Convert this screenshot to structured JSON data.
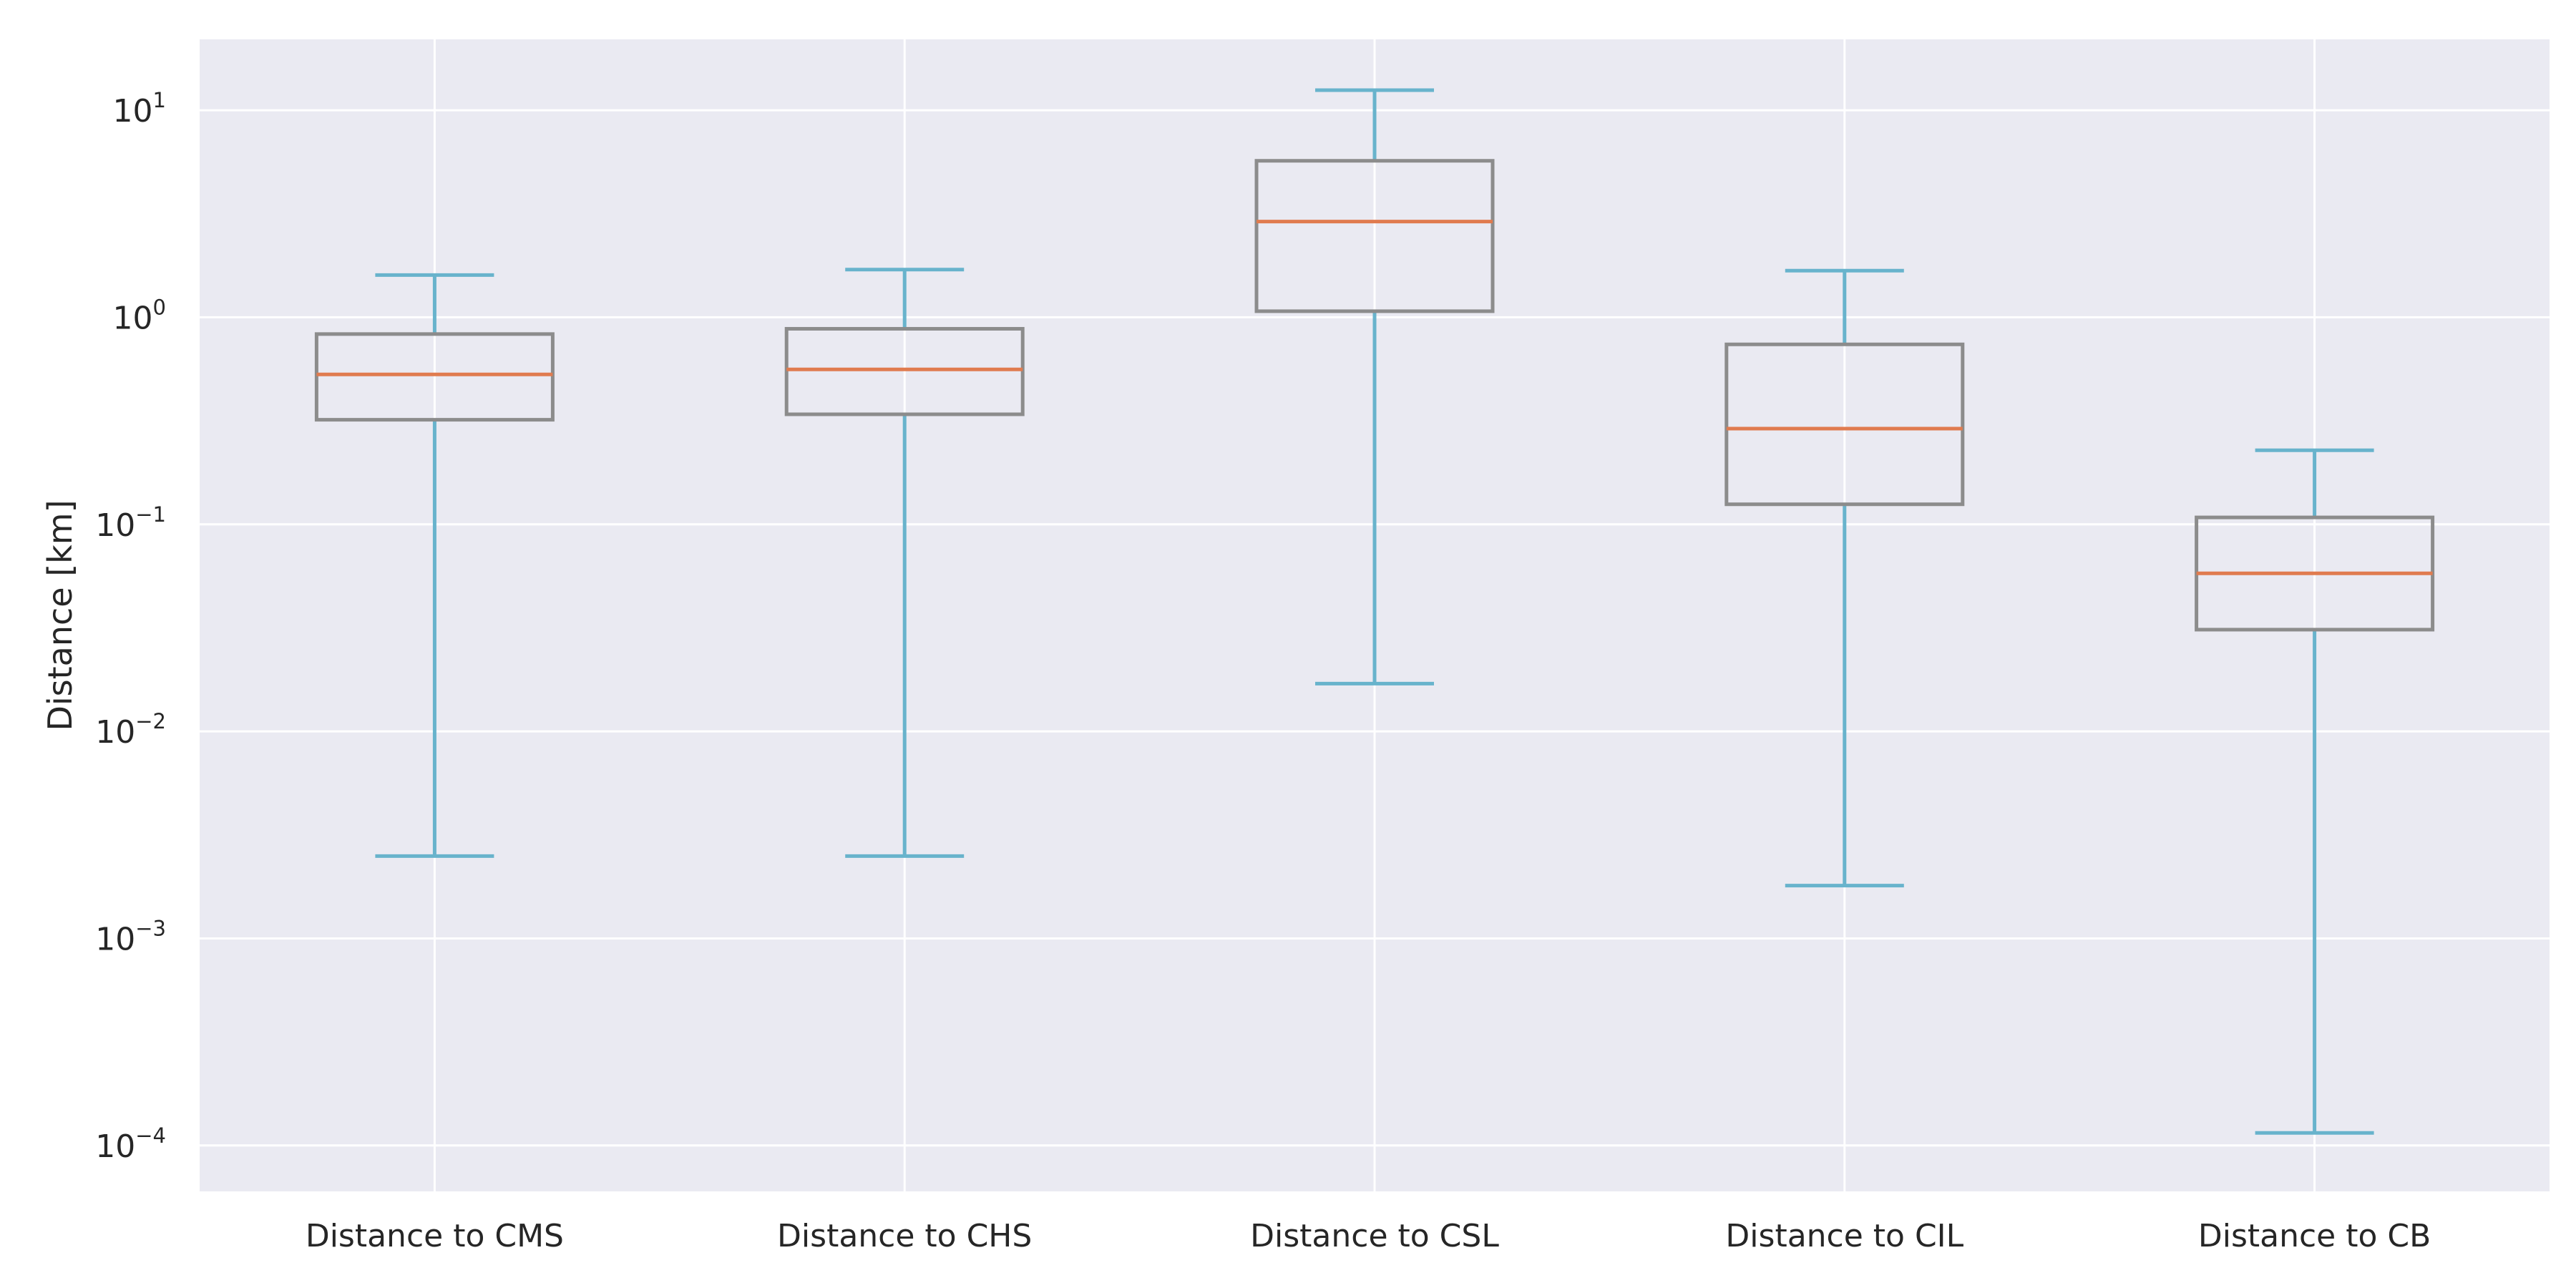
{
  "chart_data": {
    "type": "box",
    "title": "",
    "xlabel": "",
    "ylabel": "Distance [km]",
    "yscale": "log",
    "ylim": [
      6e-05,
      22
    ],
    "grid": true,
    "legend": "none",
    "categories": [
      "Distance to CMS",
      "Distance to CHS",
      "Distance to CSL",
      "Distance to CIL",
      "Distance to CB"
    ],
    "yticks": [
      {
        "value": 0.0001,
        "base": "10",
        "exp": "−4"
      },
      {
        "value": 0.001,
        "base": "10",
        "exp": "−3"
      },
      {
        "value": 0.01,
        "base": "10",
        "exp": "−2"
      },
      {
        "value": 0.1,
        "base": "10",
        "exp": "−1"
      },
      {
        "value": 1,
        "base": "10",
        "exp": "0"
      },
      {
        "value": 10,
        "base": "10",
        "exp": "1"
      }
    ],
    "boxes": [
      {
        "label": "Distance to CMS",
        "whisker_low": 0.0025,
        "q1": 0.32,
        "median": 0.53,
        "q3": 0.83,
        "whisker_high": 1.6
      },
      {
        "label": "Distance to CHS",
        "whisker_low": 0.0025,
        "q1": 0.34,
        "median": 0.56,
        "q3": 0.88,
        "whisker_high": 1.7
      },
      {
        "label": "Distance to CSL",
        "whisker_low": 0.017,
        "q1": 1.07,
        "median": 2.9,
        "q3": 5.7,
        "whisker_high": 12.5
      },
      {
        "label": "Distance to CIL",
        "whisker_low": 0.0018,
        "q1": 0.125,
        "median": 0.29,
        "q3": 0.74,
        "whisker_high": 1.68
      },
      {
        "label": "Distance to CB",
        "whisker_low": 0.000115,
        "q1": 0.031,
        "median": 0.058,
        "q3": 0.108,
        "whisker_high": 0.228
      }
    ],
    "colors": {
      "plot_background": "#eaeaf2",
      "grid": "#ffffff",
      "box": "#8c8c8c",
      "median": "#e07b4f",
      "whisker": "#68b3cc",
      "text": "#262626"
    }
  }
}
